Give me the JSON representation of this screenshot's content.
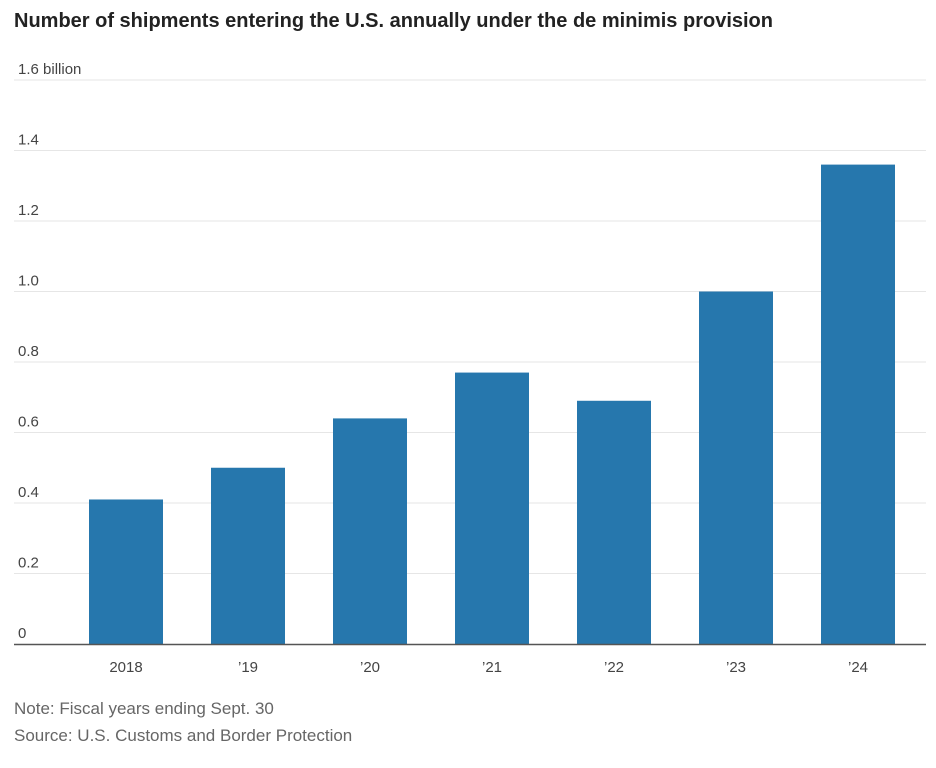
{
  "title": "Number of shipments entering the U.S. annually under the de minimis provision",
  "note": "Note: Fiscal years ending Sept. 30",
  "source": "Source: U.S. Customs and Border Protection",
  "chart_data": {
    "type": "bar",
    "title": "Number of shipments entering the U.S. annually under the de minimis provision",
    "categories": [
      "2018",
      "’19",
      "’20",
      "’21",
      "’22",
      "’23",
      "’24"
    ],
    "values": [
      0.41,
      0.5,
      0.64,
      0.77,
      0.69,
      1.0,
      1.36
    ],
    "ylim": [
      0,
      1.6
    ],
    "y_ticks": [
      0,
      0.2,
      0.4,
      0.6,
      0.8,
      1.0,
      1.2,
      1.4,
      1.6
    ],
    "y_tick_labels": [
      "0",
      "0.2",
      "0.4",
      "0.6",
      "0.8",
      "1.0",
      "1.2",
      "1.4",
      "1.6 billion"
    ],
    "bar_color": "#2677ad",
    "grid": true,
    "xlabel": "",
    "ylabel": ""
  }
}
